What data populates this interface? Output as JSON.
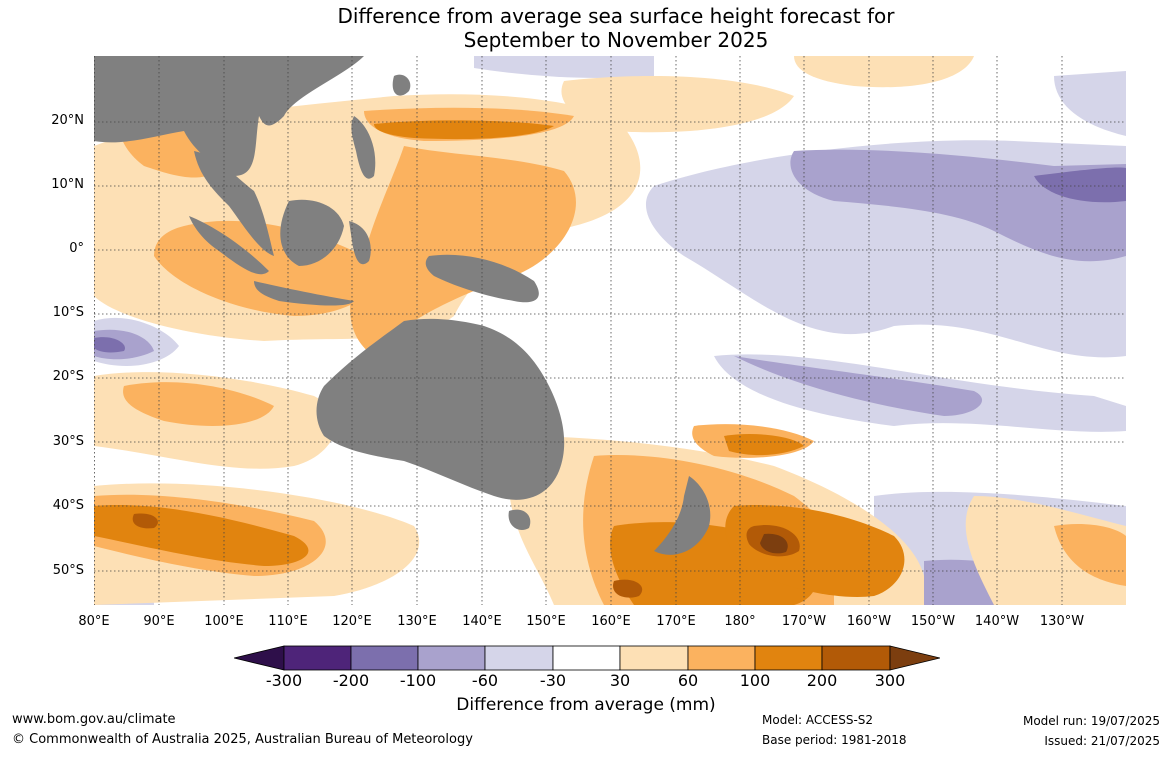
{
  "title_line1": "Difference from average sea surface height forecast for",
  "title_line2": "September to November 2025",
  "lat_labels": [
    "20°N",
    "10°N",
    "0°",
    "10°S",
    "20°S",
    "30°S",
    "40°S",
    "50°S"
  ],
  "lon_labels": [
    "80°E",
    "90°E",
    "100°E",
    "110°E",
    "120°E",
    "130°E",
    "140°E",
    "150°E",
    "160°E",
    "170°E",
    "180°",
    "170°W",
    "160°W",
    "150°W",
    "140°W",
    "130°W"
  ],
  "colorbar": {
    "ticks": [
      "-300",
      "-200",
      "-100",
      "-60",
      "-30",
      "30",
      "60",
      "100",
      "200",
      "300"
    ],
    "colors": [
      "#4e2479",
      "#7c6fad",
      "#a9a2cd",
      "#d5d5e9",
      "#ffffff",
      "#fde0b5",
      "#fbb25f",
      "#e1840f",
      "#b25a07",
      "#7c3e0f"
    ],
    "label": "Difference from average (mm)"
  },
  "land_color": "#808080",
  "footer": {
    "website": "www.bom.gov.au/climate",
    "copyright": "© Commonwealth of Australia 2025, Australian Bureau of Meteorology",
    "model": "Model: ACCESS-S2",
    "base_period": "Base period: 1981-2018",
    "model_run": "Model run: 19/07/2025",
    "issued": "Issued: 21/07/2025"
  }
}
